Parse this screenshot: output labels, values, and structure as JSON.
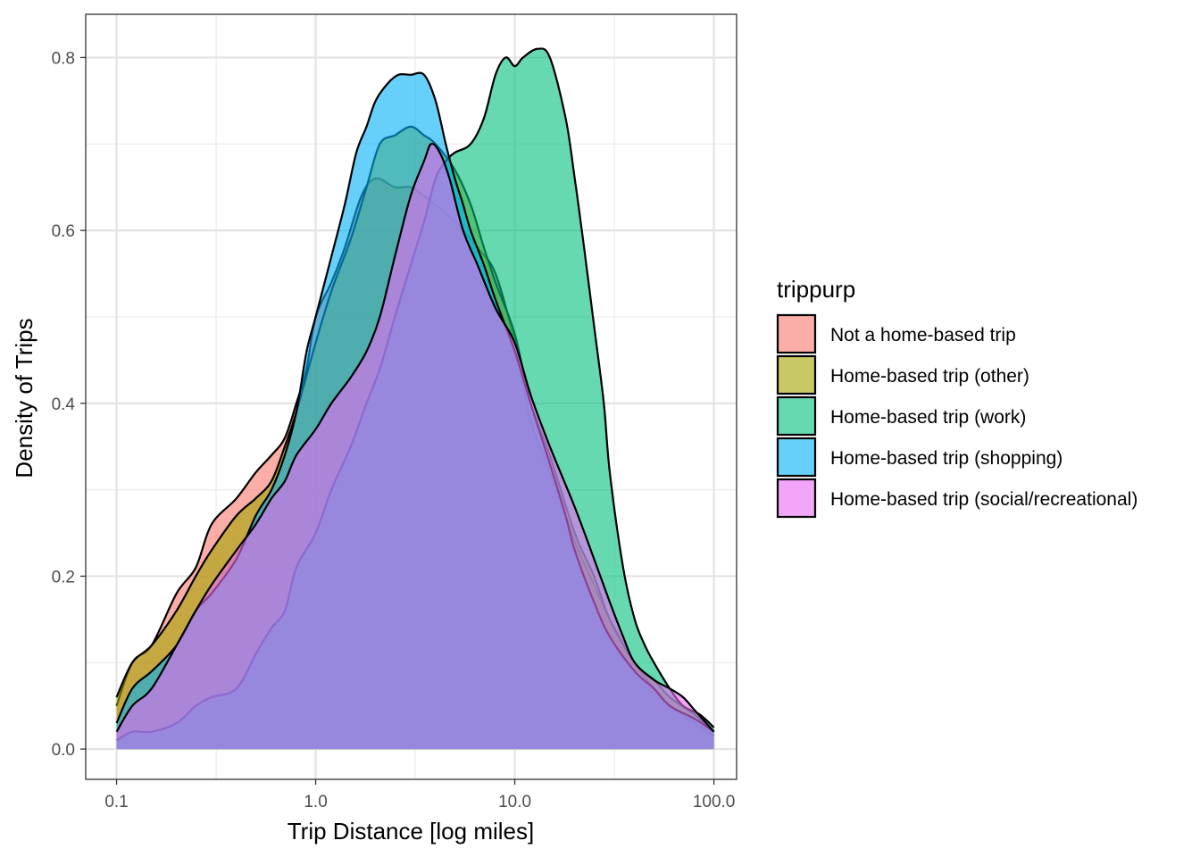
{
  "chart_data": {
    "type": "area",
    "title": "",
    "xlabel": "Trip Distance [log miles]",
    "ylabel": "Density of Trips",
    "x_scale": "log10",
    "xlim": [
      0.07,
      130
    ],
    "ylim": [
      -0.035,
      0.85
    ],
    "x_ticks": [
      {
        "value": 0.1,
        "label": "0.1"
      },
      {
        "value": 1,
        "label": "1.0"
      },
      {
        "value": 10,
        "label": "10.0"
      },
      {
        "value": 100,
        "label": "100.0"
      }
    ],
    "y_ticks": [
      {
        "value": 0.0,
        "label": "0.0"
      },
      {
        "value": 0.2,
        "label": "0.2"
      },
      {
        "value": 0.4,
        "label": "0.4"
      },
      {
        "value": 0.6,
        "label": "0.6"
      },
      {
        "value": 0.8,
        "label": "0.8"
      }
    ],
    "grid": true,
    "legend_title": "trippurp",
    "legend_position": "right",
    "fill_opacity": 0.6,
    "series": [
      {
        "name": "Not a home-based trip",
        "color": "#F8766D",
        "points": [
          [
            0.1,
            0.05
          ],
          [
            0.12,
            0.1
          ],
          [
            0.15,
            0.12
          ],
          [
            0.2,
            0.18
          ],
          [
            0.25,
            0.21
          ],
          [
            0.3,
            0.26
          ],
          [
            0.4,
            0.29
          ],
          [
            0.5,
            0.32
          ],
          [
            0.6,
            0.34
          ],
          [
            0.7,
            0.36
          ],
          [
            0.8,
            0.4
          ],
          [
            0.9,
            0.44
          ],
          [
            1.0,
            0.5
          ],
          [
            1.2,
            0.54
          ],
          [
            1.4,
            0.58
          ],
          [
            1.7,
            0.64
          ],
          [
            2.0,
            0.66
          ],
          [
            2.5,
            0.65
          ],
          [
            3.0,
            0.65
          ],
          [
            3.5,
            0.64
          ],
          [
            4.5,
            0.62
          ],
          [
            5.5,
            0.6
          ],
          [
            6.5,
            0.58
          ],
          [
            8.0,
            0.55
          ],
          [
            10,
            0.47
          ],
          [
            12,
            0.38
          ],
          [
            15,
            0.32
          ],
          [
            20,
            0.24
          ],
          [
            25,
            0.19
          ],
          [
            30,
            0.15
          ],
          [
            40,
            0.1
          ],
          [
            50,
            0.07
          ],
          [
            60,
            0.05
          ],
          [
            80,
            0.03
          ],
          [
            100,
            0.015
          ]
        ]
      },
      {
        "name": "Home-based trip (other)",
        "color": "#A3A500",
        "points": [
          [
            0.1,
            0.06
          ],
          [
            0.12,
            0.1
          ],
          [
            0.15,
            0.12
          ],
          [
            0.2,
            0.16
          ],
          [
            0.25,
            0.2
          ],
          [
            0.3,
            0.23
          ],
          [
            0.4,
            0.27
          ],
          [
            0.5,
            0.29
          ],
          [
            0.6,
            0.31
          ],
          [
            0.7,
            0.35
          ],
          [
            0.8,
            0.39
          ],
          [
            1.0,
            0.47
          ],
          [
            1.2,
            0.53
          ],
          [
            1.5,
            0.59
          ],
          [
            1.8,
            0.65
          ],
          [
            2.1,
            0.7
          ],
          [
            2.5,
            0.71
          ],
          [
            3.0,
            0.72
          ],
          [
            3.5,
            0.71
          ],
          [
            4.0,
            0.7
          ],
          [
            5.0,
            0.67
          ],
          [
            6.0,
            0.63
          ],
          [
            7.0,
            0.58
          ],
          [
            8.0,
            0.54
          ],
          [
            10,
            0.48
          ],
          [
            12,
            0.4
          ],
          [
            15,
            0.34
          ],
          [
            20,
            0.25
          ],
          [
            25,
            0.2
          ],
          [
            30,
            0.15
          ],
          [
            40,
            0.1
          ],
          [
            50,
            0.08
          ],
          [
            60,
            0.06
          ],
          [
            80,
            0.04
          ],
          [
            100,
            0.02
          ]
        ]
      },
      {
        "name": "Home-based trip (work)",
        "color": "#00BF7D",
        "points": [
          [
            0.1,
            0.01
          ],
          [
            0.12,
            0.02
          ],
          [
            0.15,
            0.02
          ],
          [
            0.2,
            0.03
          ],
          [
            0.25,
            0.05
          ],
          [
            0.3,
            0.06
          ],
          [
            0.4,
            0.07
          ],
          [
            0.5,
            0.11
          ],
          [
            0.6,
            0.14
          ],
          [
            0.7,
            0.16
          ],
          [
            0.8,
            0.21
          ],
          [
            1.0,
            0.25
          ],
          [
            1.2,
            0.3
          ],
          [
            1.5,
            0.35
          ],
          [
            1.8,
            0.4
          ],
          [
            2.1,
            0.44
          ],
          [
            2.5,
            0.5
          ],
          [
            3.0,
            0.56
          ],
          [
            3.5,
            0.61
          ],
          [
            4.0,
            0.66
          ],
          [
            4.5,
            0.68
          ],
          [
            5.0,
            0.69
          ],
          [
            6.0,
            0.7
          ],
          [
            7.0,
            0.73
          ],
          [
            8.0,
            0.78
          ],
          [
            9.0,
            0.8
          ],
          [
            10,
            0.79
          ],
          [
            11,
            0.8
          ],
          [
            13,
            0.81
          ],
          [
            15,
            0.8
          ],
          [
            18,
            0.73
          ],
          [
            20,
            0.66
          ],
          [
            22,
            0.59
          ],
          [
            25,
            0.49
          ],
          [
            28,
            0.4
          ],
          [
            30,
            0.32
          ],
          [
            35,
            0.21
          ],
          [
            40,
            0.15
          ],
          [
            45,
            0.12
          ],
          [
            50,
            0.1
          ],
          [
            60,
            0.07
          ],
          [
            70,
            0.05
          ],
          [
            85,
            0.04
          ],
          [
            100,
            0.025
          ]
        ]
      },
      {
        "name": "Home-based trip (shopping)",
        "color": "#00B0F6",
        "points": [
          [
            0.1,
            0.03
          ],
          [
            0.12,
            0.07
          ],
          [
            0.15,
            0.09
          ],
          [
            0.2,
            0.12
          ],
          [
            0.25,
            0.16
          ],
          [
            0.3,
            0.18
          ],
          [
            0.4,
            0.22
          ],
          [
            0.5,
            0.27
          ],
          [
            0.6,
            0.3
          ],
          [
            0.7,
            0.34
          ],
          [
            0.8,
            0.39
          ],
          [
            0.9,
            0.46
          ],
          [
            1.0,
            0.5
          ],
          [
            1.2,
            0.57
          ],
          [
            1.4,
            0.63
          ],
          [
            1.6,
            0.69
          ],
          [
            1.8,
            0.72
          ],
          [
            2.0,
            0.75
          ],
          [
            2.3,
            0.77
          ],
          [
            2.6,
            0.78
          ],
          [
            3.0,
            0.78
          ],
          [
            3.5,
            0.78
          ],
          [
            4.0,
            0.75
          ],
          [
            4.5,
            0.7
          ],
          [
            5.0,
            0.66
          ],
          [
            5.5,
            0.63
          ],
          [
            6.0,
            0.6
          ],
          [
            7.0,
            0.56
          ],
          [
            8.0,
            0.52
          ],
          [
            10,
            0.46
          ],
          [
            12,
            0.4
          ],
          [
            15,
            0.33
          ],
          [
            18,
            0.27
          ],
          [
            20,
            0.23
          ],
          [
            25,
            0.17
          ],
          [
            30,
            0.13
          ],
          [
            40,
            0.09
          ],
          [
            50,
            0.07
          ],
          [
            60,
            0.05
          ],
          [
            80,
            0.035
          ],
          [
            100,
            0.02
          ]
        ]
      },
      {
        "name": "Home-based trip (social/recreational)",
        "color": "#E76BF3",
        "points": [
          [
            0.1,
            0.02
          ],
          [
            0.12,
            0.05
          ],
          [
            0.15,
            0.07
          ],
          [
            0.2,
            0.12
          ],
          [
            0.25,
            0.16
          ],
          [
            0.3,
            0.19
          ],
          [
            0.4,
            0.23
          ],
          [
            0.5,
            0.26
          ],
          [
            0.6,
            0.29
          ],
          [
            0.7,
            0.31
          ],
          [
            0.8,
            0.34
          ],
          [
            1.0,
            0.37
          ],
          [
            1.2,
            0.4
          ],
          [
            1.5,
            0.43
          ],
          [
            1.8,
            0.46
          ],
          [
            2.1,
            0.5
          ],
          [
            2.5,
            0.57
          ],
          [
            3.0,
            0.64
          ],
          [
            3.5,
            0.68
          ],
          [
            3.8,
            0.7
          ],
          [
            4.2,
            0.69
          ],
          [
            4.7,
            0.66
          ],
          [
            5.5,
            0.6
          ],
          [
            6.5,
            0.56
          ],
          [
            8.0,
            0.51
          ],
          [
            10,
            0.47
          ],
          [
            12,
            0.41
          ],
          [
            15,
            0.35
          ],
          [
            20,
            0.28
          ],
          [
            25,
            0.22
          ],
          [
            30,
            0.17
          ],
          [
            35,
            0.13
          ],
          [
            40,
            0.1
          ],
          [
            50,
            0.08
          ],
          [
            60,
            0.07
          ],
          [
            70,
            0.06
          ],
          [
            80,
            0.045
          ],
          [
            100,
            0.02
          ]
        ]
      }
    ]
  }
}
